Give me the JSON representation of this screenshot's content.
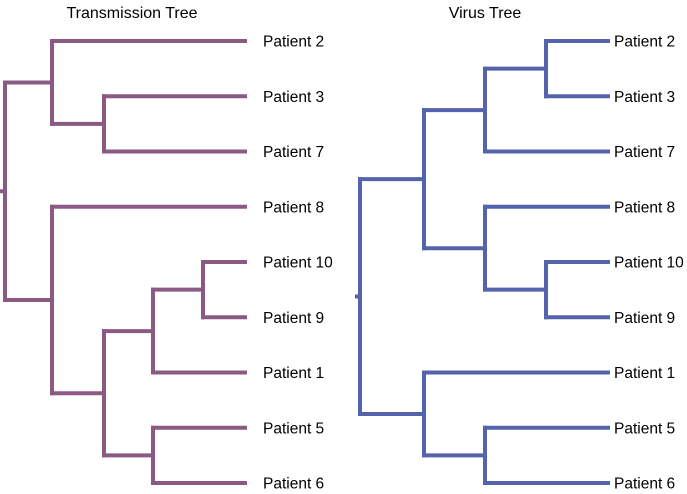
{
  "transmission_tree": {
    "title": "Transmission Tree",
    "color": "#8a5a85",
    "leaves": [
      "Patient 2",
      "Patient 3",
      "Patient 7",
      "Patient 8",
      "Patient 10",
      "Patient 9",
      "Patient 1",
      "Patient 5",
      "Patient 6"
    ],
    "structure": [
      [
        0,
        [
          1,
          2
        ]
      ],
      [
        3,
        [
          [
            [
              4,
              5
            ],
            6
          ],
          [
            7,
            8
          ]
        ]
      ]
    ]
  },
  "virus_tree": {
    "title": "Virus Tree",
    "color": "#5563ad",
    "leaves": [
      "Patient 2",
      "Patient 3",
      "Patient 7",
      "Patient 8",
      "Patient 10",
      "Patient 9",
      "Patient 1",
      "Patient 5",
      "Patient 6"
    ],
    "structure": [
      [
        [
          [
            0,
            1
          ],
          2
        ],
        [
          3,
          [
            4,
            5
          ]
        ]
      ],
      [
        6,
        [
          7,
          8
        ]
      ]
    ]
  }
}
